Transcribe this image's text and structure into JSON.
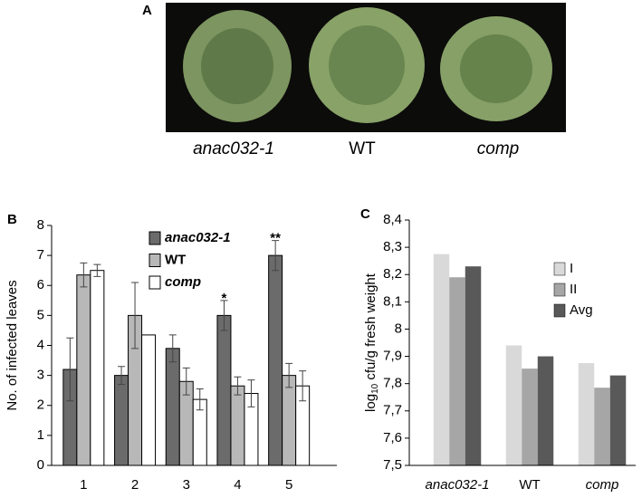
{
  "photo": {
    "label": "A",
    "captions": [
      "anac032-1",
      "WT",
      "comp"
    ],
    "italic_captions": [
      true,
      false,
      true
    ]
  },
  "chart_data": [
    {
      "type": "bar",
      "panel": "B",
      "ylabel": "No. of infected leaves",
      "categories": [
        "1",
        "2",
        "3",
        "4",
        "5"
      ],
      "series": [
        {
          "name": "anac032-1",
          "color": "#6b6b6b",
          "style": "bold italic",
          "values": [
            3.2,
            3.0,
            3.9,
            5.0,
            7.0
          ],
          "errors": [
            1.05,
            0.3,
            0.45,
            0.5,
            0.5
          ]
        },
        {
          "name": "WT",
          "color": "#b8b8b8",
          "style": "bold",
          "values": [
            6.35,
            5.0,
            2.8,
            2.65,
            3.0
          ],
          "errors": [
            0.4,
            1.1,
            0.45,
            0.3,
            0.4
          ]
        },
        {
          "name": "comp",
          "color": "#ffffff",
          "style": "bold italic",
          "values": [
            6.5,
            4.35,
            2.2,
            2.4,
            2.65
          ],
          "errors": [
            0.2,
            null,
            0.35,
            0.45,
            0.5
          ]
        }
      ],
      "annotations": [
        {
          "text": "*",
          "category": "4"
        },
        {
          "text": "**",
          "category": "5"
        }
      ],
      "ylim": [
        0,
        8
      ],
      "yticks": [
        0,
        1,
        2,
        3,
        4,
        5,
        6,
        7,
        8
      ],
      "legend": "upper-center"
    },
    {
      "type": "bar",
      "panel": "C",
      "ylabel": {
        "base": "log",
        "subscript": "10",
        "rest": " cfu/g fresh weight"
      },
      "categories": [
        "anac032-1",
        "WT",
        "comp"
      ],
      "italic_categories": [
        true,
        false,
        true
      ],
      "series": [
        {
          "name": "I",
          "color": "#d9d9d9",
          "values": [
            8.275,
            7.94,
            7.875
          ]
        },
        {
          "name": "II",
          "color": "#a6a6a6",
          "values": [
            8.19,
            7.855,
            7.785
          ]
        },
        {
          "name": "Avg",
          "color": "#595959",
          "values": [
            8.23,
            7.9,
            7.83
          ]
        }
      ],
      "ylim": [
        7.5,
        8.4
      ],
      "yticks": [
        {
          "value": 7.5,
          "label": "7,5"
        },
        {
          "value": 7.6,
          "label": "7,6"
        },
        {
          "value": 7.7,
          "label": "7,7"
        },
        {
          "value": 7.8,
          "label": "7,8"
        },
        {
          "value": 7.9,
          "label": "7,9"
        },
        8,
        {
          "value": 8.1,
          "label": "8,1"
        },
        {
          "value": 8.2,
          "label": "8,2"
        },
        {
          "value": 8.3,
          "label": "8,3"
        },
        {
          "value": 8.4,
          "label": "8,4"
        }
      ],
      "legend": "upper-right"
    }
  ]
}
